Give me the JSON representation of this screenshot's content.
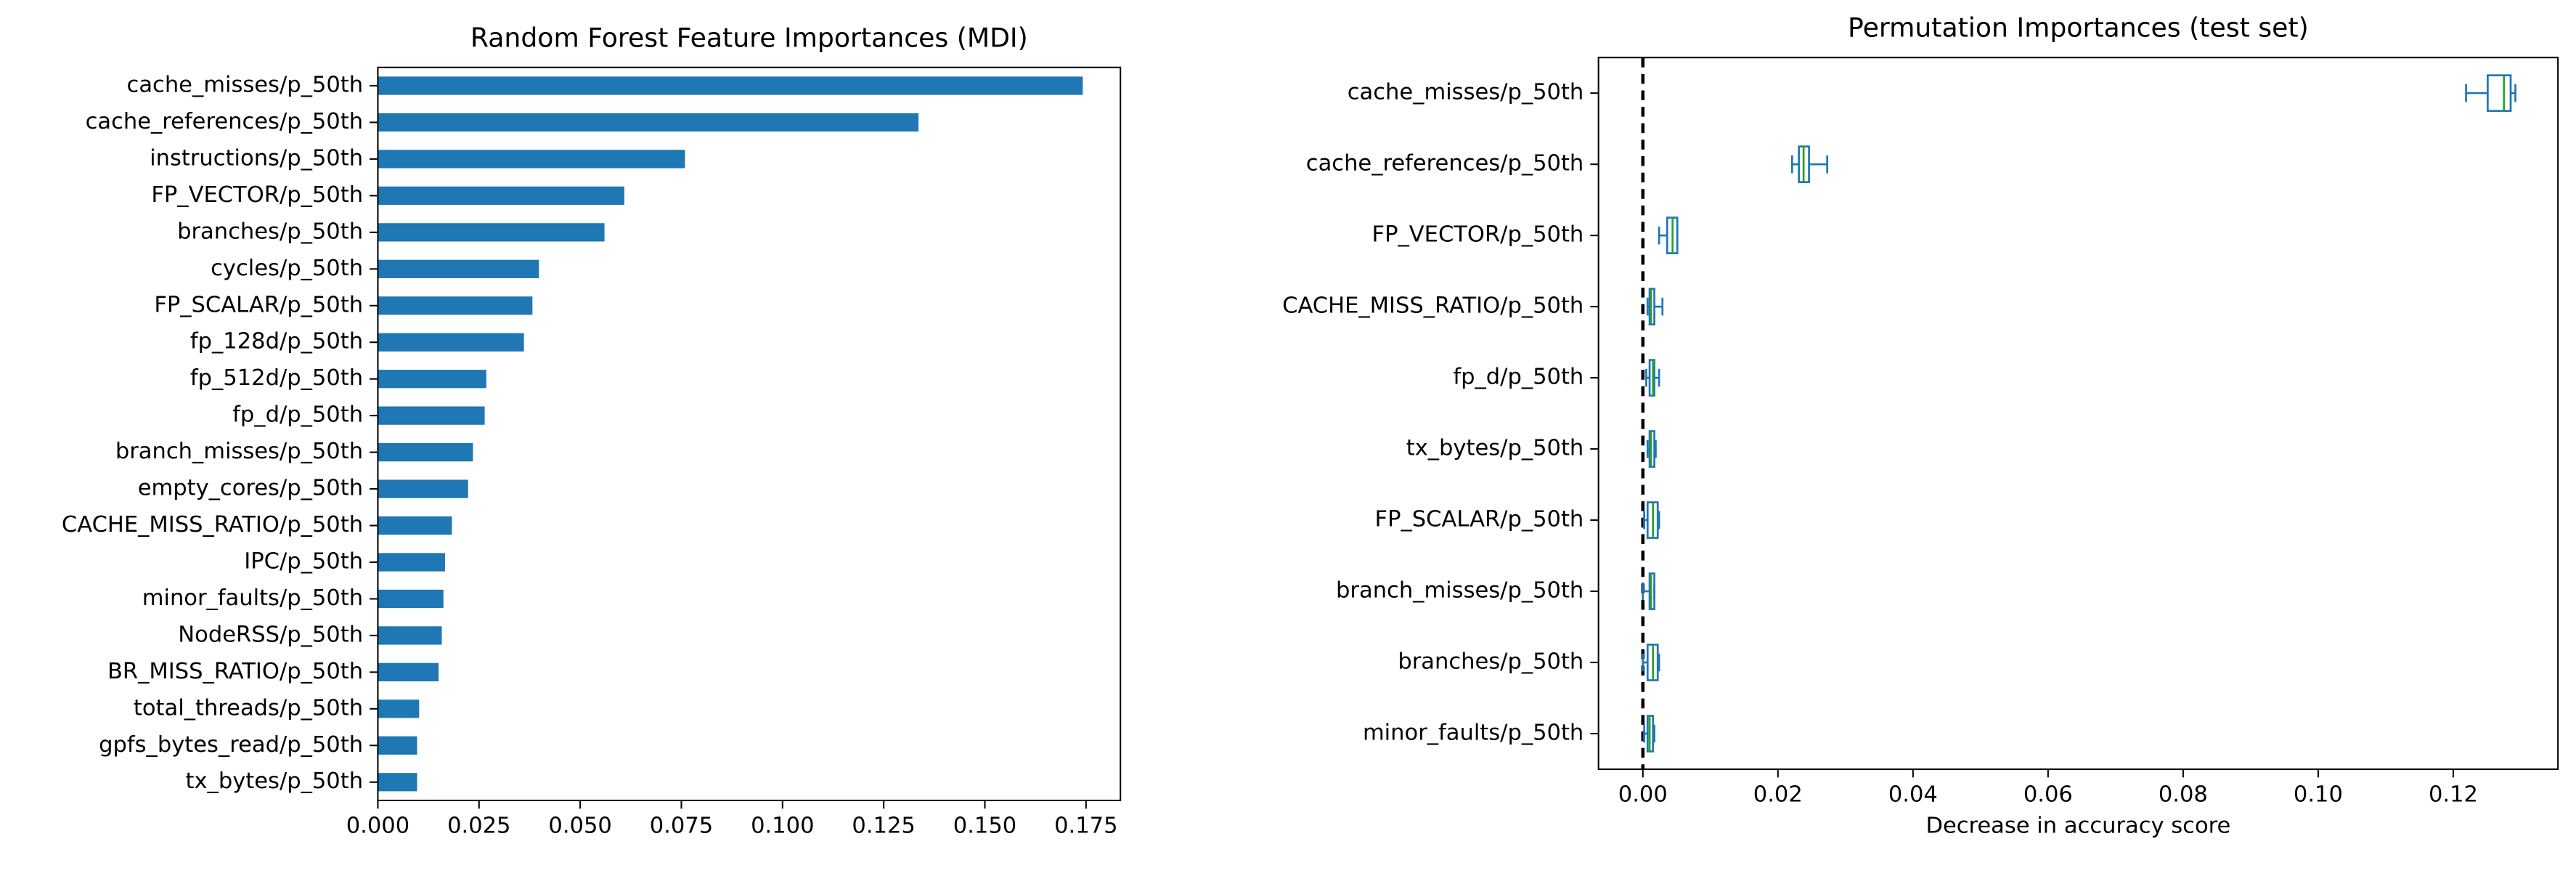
{
  "chart_data": [
    {
      "type": "barh",
      "title": "Random Forest Feature Importances (MDI)",
      "color": "#1f77b4",
      "categories": [
        "cache_misses/p_50th",
        "cache_references/p_50th",
        "instructions/p_50th",
        "FP_VECTOR/p_50th",
        "branches/p_50th",
        "cycles/p_50th",
        "FP_SCALAR/p_50th",
        "fp_128d/p_50th",
        "fp_512d/p_50th",
        "fp_d/p_50th",
        "branch_misses/p_50th",
        "empty_cores/p_50th",
        "CACHE_MISS_RATIO/p_50th",
        "IPC/p_50th",
        "minor_faults/p_50th",
        "NodeRSS/p_50th",
        "BR_MISS_RATIO/p_50th",
        "total_threads/p_50th",
        "gpfs_bytes_read/p_50th",
        "tx_bytes/p_50th"
      ],
      "values": [
        0.1742,
        0.1336,
        0.0759,
        0.0609,
        0.056,
        0.0398,
        0.0382,
        0.0361,
        0.0268,
        0.0264,
        0.0235,
        0.0223,
        0.0183,
        0.0166,
        0.0162,
        0.0158,
        0.015,
        0.0102,
        0.0097,
        0.0097
      ],
      "xlim": [
        0,
        0.1835
      ],
      "xticks": [
        {
          "value": 0,
          "label": "0.000"
        },
        {
          "value": 0.025,
          "label": "0.025"
        },
        {
          "value": 0.05,
          "label": "0.050"
        },
        {
          "value": 0.075,
          "label": "0.075"
        },
        {
          "value": 0.1,
          "label": "0.100"
        },
        {
          "value": 0.125,
          "label": "0.125"
        },
        {
          "value": 0.15,
          "label": "0.150"
        },
        {
          "value": 0.175,
          "label": "0.175"
        }
      ]
    },
    {
      "type": "boxh",
      "title": "Permutation Importances (test set)",
      "xlabel": "Decrease in accuracy score",
      "color": "#1f77b4",
      "median_color": "#2ca02c",
      "vline": 0,
      "categories": [
        "cache_misses/p_50th",
        "cache_references/p_50th",
        "FP_VECTOR/p_50th",
        "CACHE_MISS_RATIO/p_50th",
        "fp_d/p_50th",
        "tx_bytes/p_50th",
        "FP_SCALAR/p_50th",
        "branch_misses/p_50th",
        "branches/p_50th",
        "minor_faults/p_50th"
      ],
      "whislo": [
        0.1219,
        0.0221,
        0.0024,
        0.0007,
        0.0005,
        0.0007,
        0.0002,
        0.0,
        0.0,
        0.0002
      ],
      "q1": [
        0.1251,
        0.0231,
        0.0036,
        0.001,
        0.001,
        0.001,
        0.0007,
        0.001,
        0.0007,
        0.0007
      ],
      "med": [
        0.1275,
        0.0238,
        0.0044,
        0.0012,
        0.0015,
        0.0012,
        0.0015,
        0.0012,
        0.0015,
        0.001
      ],
      "q3": [
        0.1285,
        0.0246,
        0.0051,
        0.0017,
        0.0017,
        0.0017,
        0.0022,
        0.0017,
        0.0022,
        0.0015
      ],
      "whishi": [
        0.1292,
        0.0273,
        0.0051,
        0.0029,
        0.0024,
        0.0019,
        0.0024,
        0.0017,
        0.0024,
        0.0017
      ],
      "xlim": [
        -0.00657,
        0.1355
      ],
      "xticks": [
        {
          "value": 0,
          "label": "0.00"
        },
        {
          "value": 0.02,
          "label": "0.02"
        },
        {
          "value": 0.04,
          "label": "0.04"
        },
        {
          "value": 0.06,
          "label": "0.06"
        },
        {
          "value": 0.08,
          "label": "0.08"
        },
        {
          "value": 0.1,
          "label": "0.10"
        },
        {
          "value": 0.12,
          "label": "0.12"
        }
      ]
    }
  ]
}
